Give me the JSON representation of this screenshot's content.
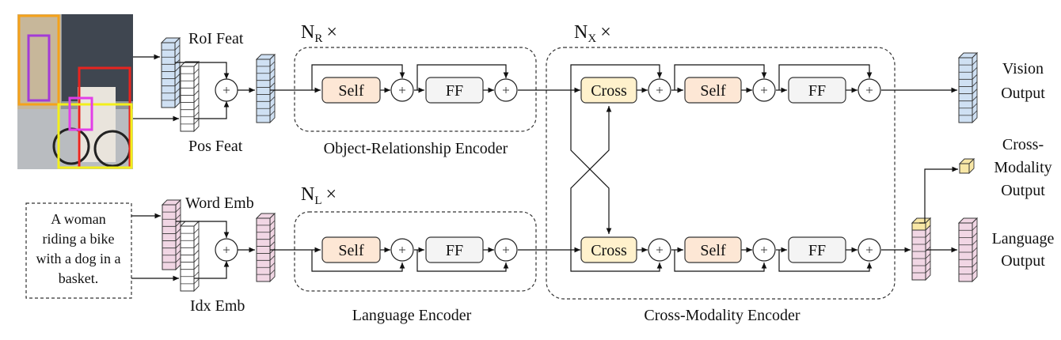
{
  "colors": {
    "vision_feat": "#cfe0f3",
    "language_feat": "#f1d6e4",
    "cross_feat": "#f8e7a6",
    "self_box": "#fde7d5",
    "cross_box": "#fff1cc",
    "ff_box": "#f4f4f4",
    "photo_box_orange": "#f4a21b",
    "photo_box_purple": "#a33bd6",
    "photo_box_red": "#e8241f",
    "photo_box_yellow": "#f3ef1c",
    "photo_box_magenta": "#e23ee8"
  },
  "inputs": {
    "image_icon": "image-thumbnail-icon",
    "roi_feat": "RoI Feat",
    "pos_feat": "Pos Feat",
    "sentence": [
      "A woman",
      "riding a bike",
      "with a dog in a",
      "basket."
    ],
    "word_emb": "Word Emb",
    "idx_emb": "Idx Emb"
  },
  "encoders": {
    "object_relationship": {
      "repeat_base": "N",
      "repeat_sub": "R",
      "times": "×",
      "label": "Object-Relationship Encoder"
    },
    "language": {
      "repeat_base": "N",
      "repeat_sub": "L",
      "times": "×",
      "label": "Language Encoder"
    },
    "cross_modality": {
      "repeat_base": "N",
      "repeat_sub": "X",
      "times": "×",
      "label": "Cross-Modality Encoder"
    }
  },
  "blocks": {
    "self": "Self",
    "ff": "FF",
    "cross": "Cross"
  },
  "outputs": {
    "vision": [
      "Vision",
      "Output"
    ],
    "cross_modality": [
      "Cross-",
      "Modality",
      "Output"
    ],
    "language": [
      "Language",
      "Output"
    ]
  }
}
